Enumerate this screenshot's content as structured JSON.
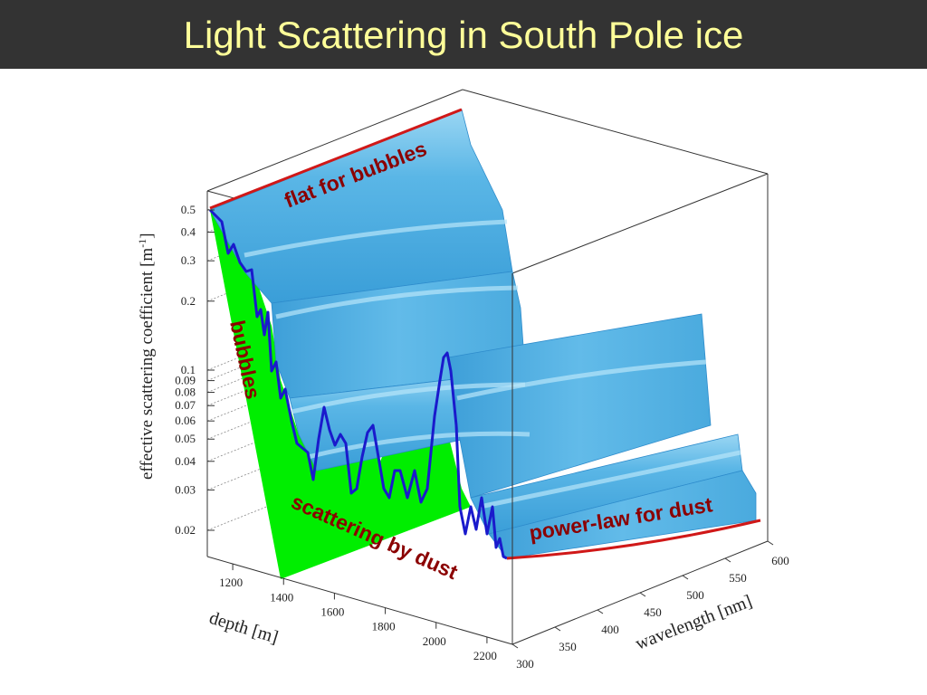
{
  "slide": {
    "title": "Light Scattering in South Pole ice"
  },
  "chart_data": {
    "type": "surface3d",
    "ylabel_main": "effective scattering coefficient [m",
    "ylabel_exp": "-1",
    "ylabel_end": "]",
    "xlabel": "depth [m]",
    "zlabel": "wavelength [nm]",
    "y_scale": "log",
    "y_ticks": [
      "0.5",
      "0.4",
      "0.3",
      "0.2",
      "0.1",
      "0.09",
      "0.08",
      "0.07",
      "0.06",
      "0.05",
      "0.04",
      "0.03",
      "0.02"
    ],
    "y_tick_values": [
      0.5,
      0.4,
      0.3,
      0.2,
      0.1,
      0.09,
      0.08,
      0.07,
      0.06,
      0.05,
      0.04,
      0.03,
      0.02
    ],
    "depth_ticks": [
      "1200",
      "1400",
      "1600",
      "1800",
      "2000",
      "2200"
    ],
    "wavelength_ticks": [
      "300",
      "350",
      "400",
      "450",
      "500",
      "550",
      "600"
    ],
    "annotations": [
      "flat for bubbles",
      "bubbles",
      "scattering by dust",
      "power-law for dust"
    ],
    "colors": {
      "surface": "#4aa8dc",
      "surface_light": "#8fd0f0",
      "bubbles_fill": "#00ee00",
      "profile_line": "#1a1acc",
      "fit_line": "#d01818",
      "annotation_text": "#8b0000",
      "title_text": "#ffff99",
      "title_bg": "#333333"
    }
  }
}
